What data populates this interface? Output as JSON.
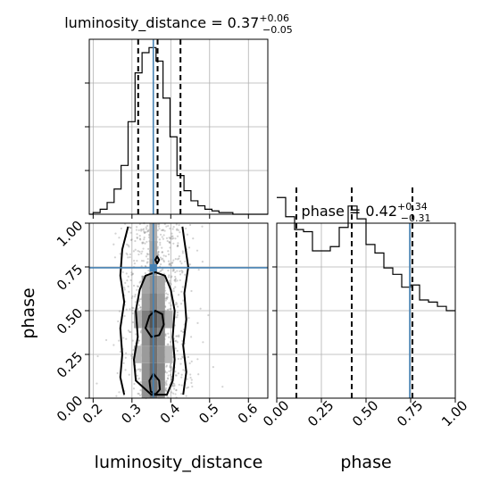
{
  "chart_data": {
    "type": "corner",
    "parameters": [
      "luminosity_distance",
      "phase"
    ],
    "colors": {
      "truth": "#4682b4",
      "hist": "#000000",
      "grid": "#b0b0b0",
      "points": "#7f7f7f"
    },
    "truth": {
      "luminosity_distance": 0.355,
      "phase": 0.745
    },
    "titles": {
      "luminosity_distance": {
        "text": "luminosity_distance = 0.37",
        "plus": "+0.06",
        "minus": "−0.05"
      },
      "phase": {
        "text": "phase = 0.42",
        "plus": "+0.34",
        "minus": "−0.31"
      }
    },
    "axis_labels": {
      "x_bottom_left": "luminosity_distance",
      "x_bottom_right": "phase",
      "y_left": "phase"
    },
    "luminosity_distance_hist": {
      "xlim": [
        0.19,
        0.65
      ],
      "quantiles": [
        0.316,
        0.366,
        0.425
      ],
      "bin_edges": [
        0.19,
        0.2,
        0.218,
        0.236,
        0.254,
        0.272,
        0.29,
        0.308,
        0.326,
        0.344,
        0.362,
        0.38,
        0.398,
        0.416,
        0.434,
        0.452,
        0.47,
        0.488,
        0.506,
        0.524,
        0.542,
        0.56,
        0.578,
        0.596,
        0.614,
        0.65
      ],
      "counts": [
        0,
        1,
        3,
        7,
        15,
        29,
        55,
        84,
        96,
        99,
        91,
        69,
        46,
        23,
        14,
        8,
        5,
        3,
        2,
        1,
        1,
        0,
        0,
        0,
        0
      ],
      "tick_values": [
        0.2,
        0.3,
        0.4,
        0.5,
        0.6
      ],
      "tick_labels": [
        "0.2",
        "0.3",
        "0.4",
        "0.5",
        "0.6"
      ]
    },
    "phase_hist": {
      "xlim": [
        0.0,
        1.0
      ],
      "quantiles": [
        0.11,
        0.42,
        0.76
      ],
      "bin_edges": [
        0.0,
        0.05,
        0.1,
        0.15,
        0.2,
        0.25,
        0.3,
        0.35,
        0.4,
        0.45,
        0.5,
        0.55,
        0.6,
        0.65,
        0.7,
        0.75,
        0.8,
        0.85,
        0.9,
        0.95,
        1.0
      ],
      "counts": [
        94,
        85,
        79,
        78,
        69,
        69,
        71,
        80,
        90,
        84,
        72,
        68,
        61,
        58,
        52,
        53,
        46,
        45,
        43,
        41
      ],
      "tick_values": [
        0.0,
        0.25,
        0.5,
        0.75,
        1.0
      ],
      "tick_labels": [
        "0.00",
        "0.25",
        "0.50",
        "0.75",
        "1.00"
      ]
    },
    "joint": {
      "xlim": [
        0.19,
        0.65
      ],
      "ylim": [
        0.0,
        1.0
      ],
      "y_tick_values": [
        0.0,
        0.25,
        0.5,
        0.75,
        1.0
      ],
      "y_tick_labels": [
        "0.00",
        "0.25",
        "0.50",
        "0.75",
        "1.00"
      ],
      "density_cells": [
        {
          "x": 0.355,
          "y": 0.05,
          "d": 0.7
        },
        {
          "x": 0.355,
          "y": 0.15,
          "d": 0.75
        },
        {
          "x": 0.355,
          "y": 0.25,
          "d": 0.7
        },
        {
          "x": 0.355,
          "y": 0.35,
          "d": 0.75
        },
        {
          "x": 0.355,
          "y": 0.45,
          "d": 0.85
        },
        {
          "x": 0.355,
          "y": 0.55,
          "d": 0.65
        },
        {
          "x": 0.355,
          "y": 0.65,
          "d": 0.55
        },
        {
          "x": 0.355,
          "y": 0.75,
          "d": 0.5
        },
        {
          "x": 0.355,
          "y": 0.85,
          "d": 0.45
        },
        {
          "x": 0.355,
          "y": 0.95,
          "d": 0.4
        },
        {
          "x": 0.335,
          "y": 0.05,
          "d": 0.55
        },
        {
          "x": 0.335,
          "y": 0.15,
          "d": 0.55
        },
        {
          "x": 0.335,
          "y": 0.25,
          "d": 0.5
        },
        {
          "x": 0.335,
          "y": 0.35,
          "d": 0.55
        },
        {
          "x": 0.335,
          "y": 0.45,
          "d": 0.65
        },
        {
          "x": 0.335,
          "y": 0.55,
          "d": 0.5
        },
        {
          "x": 0.335,
          "y": 0.65,
          "d": 0.45
        },
        {
          "x": 0.375,
          "y": 0.05,
          "d": 0.55
        },
        {
          "x": 0.375,
          "y": 0.15,
          "d": 0.6
        },
        {
          "x": 0.375,
          "y": 0.25,
          "d": 0.55
        },
        {
          "x": 0.375,
          "y": 0.35,
          "d": 0.6
        },
        {
          "x": 0.375,
          "y": 0.45,
          "d": 0.7
        },
        {
          "x": 0.375,
          "y": 0.55,
          "d": 0.5
        },
        {
          "x": 0.375,
          "y": 0.65,
          "d": 0.45
        },
        {
          "x": 0.315,
          "y": 0.25,
          "d": 0.35
        },
        {
          "x": 0.315,
          "y": 0.45,
          "d": 0.4
        },
        {
          "x": 0.395,
          "y": 0.25,
          "d": 0.35
        },
        {
          "x": 0.395,
          "y": 0.45,
          "d": 0.4
        }
      ],
      "contours": [
        {
          "name": "outer-left",
          "points": [
            [
              0.28,
              0.02
            ],
            [
              0.27,
              0.12
            ],
            [
              0.275,
              0.25
            ],
            [
              0.27,
              0.4
            ],
            [
              0.28,
              0.55
            ],
            [
              0.27,
              0.7
            ],
            [
              0.275,
              0.85
            ],
            [
              0.29,
              0.98
            ]
          ]
        },
        {
          "name": "outer-right",
          "points": [
            [
              0.432,
              0.02
            ],
            [
              0.44,
              0.15
            ],
            [
              0.432,
              0.3
            ],
            [
              0.44,
              0.45
            ],
            [
              0.435,
              0.6
            ],
            [
              0.445,
              0.75
            ],
            [
              0.435,
              0.9
            ],
            [
              0.43,
              0.98
            ]
          ]
        },
        {
          "name": "middle-ring",
          "closed": true,
          "points": [
            [
              0.35,
              0.02
            ],
            [
              0.31,
              0.1
            ],
            [
              0.305,
              0.22
            ],
            [
              0.315,
              0.35
            ],
            [
              0.31,
              0.5
            ],
            [
              0.32,
              0.62
            ],
            [
              0.335,
              0.7
            ],
            [
              0.36,
              0.72
            ],
            [
              0.385,
              0.7
            ],
            [
              0.4,
              0.62
            ],
            [
              0.41,
              0.5
            ],
            [
              0.405,
              0.35
            ],
            [
              0.41,
              0.22
            ],
            [
              0.405,
              0.1
            ],
            [
              0.39,
              0.02
            ]
          ]
        },
        {
          "name": "inner-upper",
          "closed": true,
          "points": [
            [
              0.335,
              0.4
            ],
            [
              0.345,
              0.47
            ],
            [
              0.36,
              0.5
            ],
            [
              0.378,
              0.48
            ],
            [
              0.382,
              0.42
            ],
            [
              0.37,
              0.36
            ],
            [
              0.35,
              0.35
            ]
          ]
        },
        {
          "name": "inner-lower",
          "closed": true,
          "points": [
            [
              0.348,
              0.04
            ],
            [
              0.345,
              0.1
            ],
            [
              0.355,
              0.14
            ],
            [
              0.37,
              0.1
            ],
            [
              0.372,
              0.05
            ],
            [
              0.36,
              0.02
            ]
          ]
        },
        {
          "name": "inner-dot",
          "closed": true,
          "points": [
            [
              0.36,
              0.79
            ],
            [
              0.365,
              0.81
            ],
            [
              0.37,
              0.79
            ],
            [
              0.365,
              0.77
            ]
          ]
        }
      ],
      "points_count": 900
    }
  }
}
